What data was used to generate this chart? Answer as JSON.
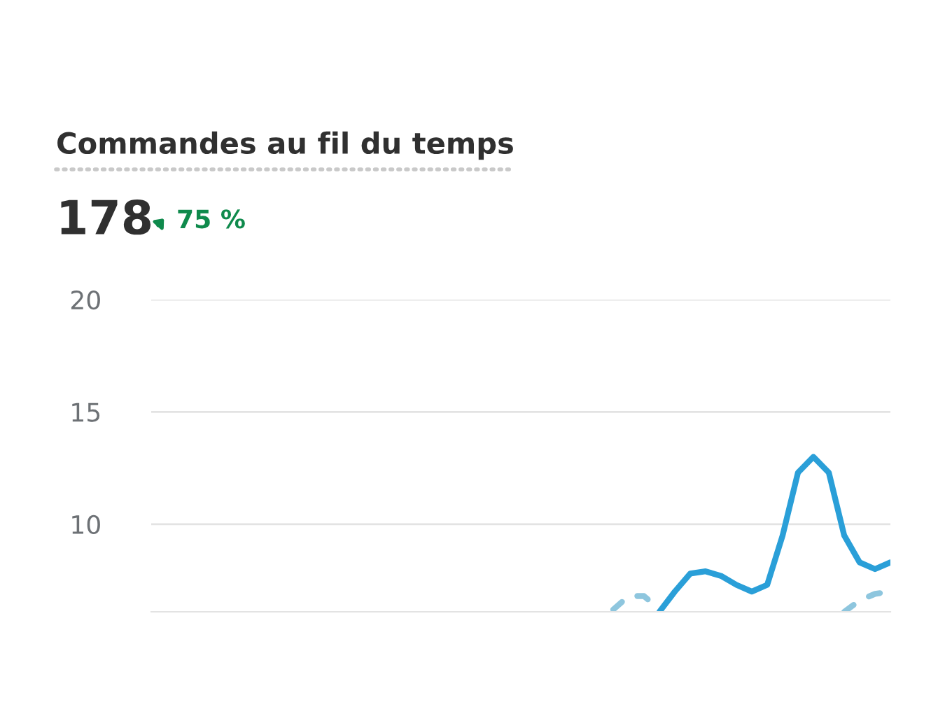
{
  "chart_data": {
    "type": "line",
    "title": "Commandes au fil du temps",
    "subtitle": "178",
    "annotations": [
      "75 %"
    ],
    "categories": [
      null,
      null,
      null,
      null,
      null,
      null,
      null,
      null,
      null,
      null,
      null,
      null,
      null,
      null,
      null,
      null,
      null,
      null,
      null,
      null,
      null,
      null,
      null,
      null,
      null,
      null,
      null,
      null,
      null,
      null,
      null,
      null,
      null,
      null,
      null,
      null,
      null,
      null,
      null,
      null,
      null,
      null,
      null,
      null,
      null,
      null,
      null,
      null,
      null
    ],
    "series": [
      {
        "color": "#2a9fd8",
        "line_style": "solid",
        "values": [
          null,
          null,
          null,
          null,
          null,
          null,
          null,
          null,
          null,
          null,
          null,
          null,
          null,
          null,
          null,
          null,
          null,
          null,
          null,
          null,
          null,
          null,
          null,
          null,
          null,
          null,
          null,
          null,
          null,
          null,
          null,
          null,
          null,
          6.1,
          7.0,
          7.8,
          7.9,
          7.7,
          7.3,
          7.0,
          7.3,
          9.5,
          12.3,
          13.0,
          12.3,
          9.5,
          8.3,
          8.0,
          8.3
        ]
      },
      {
        "color": "#8ec6de",
        "line_style": "dashed",
        "values": [
          null,
          null,
          null,
          null,
          null,
          null,
          null,
          null,
          null,
          null,
          null,
          null,
          null,
          null,
          null,
          null,
          null,
          null,
          null,
          null,
          null,
          null,
          null,
          null,
          null,
          null,
          null,
          null,
          null,
          null,
          6.2,
          6.8,
          6.8,
          6.2,
          null,
          null,
          null,
          null,
          null,
          null,
          null,
          null,
          null,
          null,
          null,
          6.1,
          6.6,
          6.9,
          7.0
        ]
      }
    ],
    "ylim": [
      6.1,
      20
    ],
    "yticks": [
      10,
      15,
      20
    ],
    "grid": "y",
    "tick_labels": "y"
  }
}
